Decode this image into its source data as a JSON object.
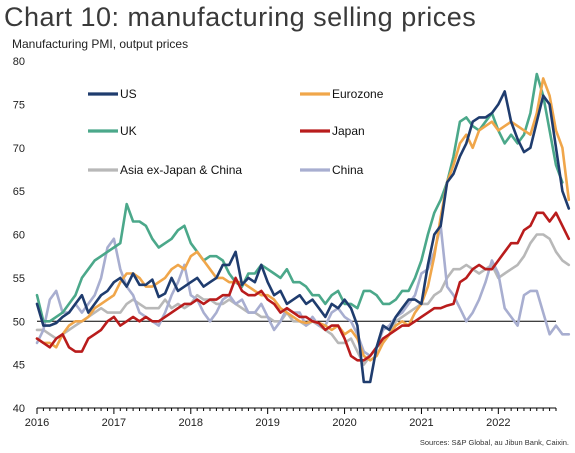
{
  "header": {
    "title": "Chart 10: manufacturing selling prices",
    "subtitle": "Manufacturing PMI, output prices",
    "source": "Sources: S&P Global, au Jibun Bank, Caixin."
  },
  "chart_data": {
    "type": "line",
    "ylim": [
      40,
      80
    ],
    "yticks": [
      40,
      45,
      50,
      55,
      60,
      65,
      70,
      75,
      80
    ],
    "xlim": [
      2016,
      2022.75
    ],
    "xticks": [
      "2016",
      "2017",
      "2018",
      "2019",
      "2020",
      "2021",
      "2022"
    ],
    "reference_line": 50,
    "grid": false,
    "legend": "inside top-left, two columns",
    "series": [
      {
        "name": "US",
        "color": "#1f3c6e",
        "x0": 2016.0,
        "values": [
          52,
          49.5,
          49.5,
          49.8,
          50.5,
          51,
          52,
          53,
          51,
          52,
          53,
          53.5,
          54.5,
          55,
          54,
          55.5,
          54.2,
          54.2,
          54.8,
          52.8,
          53.2,
          55,
          53.5,
          54,
          54.5,
          55,
          54,
          54.5,
          55,
          56.5,
          56.5,
          58,
          54.2,
          55,
          54.5,
          56.5,
          54.5,
          53,
          53.5,
          52,
          52.5,
          53,
          52,
          52.5,
          51.5,
          50.5,
          52,
          51.5,
          52.5,
          51.5,
          49.5,
          43,
          43,
          47,
          49.5,
          49,
          50.5,
          51.5,
          52.5,
          52.5,
          52,
          56.5,
          60,
          61,
          66,
          67,
          69,
          70.5,
          73,
          73.5,
          73.5,
          74,
          75,
          76.5,
          73,
          71,
          69.5,
          70,
          73,
          76,
          75,
          70,
          65,
          63
        ]
      },
      {
        "name": "Eurozone",
        "color": "#f0a64a",
        "x0": 2016.0,
        "values": [
          48,
          47.5,
          47.5,
          47,
          48.5,
          49.5,
          50,
          50,
          50.5,
          51.5,
          52,
          52.5,
          53,
          54.5,
          55.5,
          55.5,
          55,
          54,
          54,
          54.5,
          55,
          56,
          56.5,
          56,
          57.5,
          58,
          57,
          56,
          55,
          55,
          54.5,
          54.5,
          54.5,
          54,
          53.5,
          53,
          53,
          52.5,
          51.5,
          51,
          50.5,
          50,
          49.8,
          50,
          49.8,
          49.5,
          49,
          49.5,
          48.5,
          49,
          48,
          46,
          45.5,
          46,
          47.5,
          48.5,
          49.5,
          50,
          49.5,
          51,
          52,
          54,
          57.5,
          62,
          66,
          68,
          70.5,
          71.5,
          70,
          72,
          72.5,
          73,
          72,
          72.5,
          73,
          72.5,
          72,
          71.5,
          74,
          78,
          76,
          72,
          70,
          64
        ]
      },
      {
        "name": "UK",
        "color": "#4ba88a",
        "x0": 2016.0,
        "values": [
          53,
          50,
          50,
          50.5,
          51,
          52,
          53,
          55,
          56,
          57,
          57.5,
          58,
          58.5,
          59,
          63.5,
          61.5,
          61.5,
          61,
          59.5,
          58.5,
          59,
          59.5,
          60.5,
          61,
          59,
          58,
          57,
          57.5,
          57.5,
          57,
          55.5,
          54.5,
          54,
          55.5,
          55.5,
          56.5,
          56,
          55.5,
          55,
          56,
          54.5,
          54.5,
          54,
          53,
          53,
          52,
          53,
          53.5,
          52,
          52,
          51.5,
          53.5,
          53.5,
          53,
          52,
          52,
          52.5,
          53.5,
          53.5,
          55,
          57,
          60,
          62.5,
          64,
          66,
          69,
          73,
          73.5,
          72.5,
          72,
          73,
          74,
          72,
          70.5,
          71.5,
          70.5,
          71.5,
          74,
          78.5,
          76,
          72,
          68,
          66
        ]
      },
      {
        "name": "Japan",
        "color": "#b91c1c",
        "x0": 2016.0,
        "values": [
          48,
          47.5,
          47,
          48,
          48.5,
          47,
          46.5,
          46.5,
          48,
          48.5,
          49,
          50,
          50.5,
          49.5,
          50,
          50.5,
          50,
          50.5,
          50,
          50,
          50.5,
          51,
          51.5,
          52,
          52,
          52.5,
          52,
          52.5,
          52.5,
          53,
          53,
          55,
          53.5,
          53,
          53,
          53.5,
          52.5,
          52,
          51,
          51.5,
          51,
          50.5,
          50.5,
          50,
          49.8,
          49,
          49.5,
          49.5,
          48,
          46,
          45.5,
          45.5,
          46,
          47,
          48,
          48.5,
          49,
          49.5,
          49.5,
          50,
          50.5,
          51,
          51.5,
          51.5,
          51.8,
          52,
          54.5,
          55,
          56,
          56.5,
          56,
          56,
          57,
          58,
          59,
          59,
          60.5,
          61,
          62.5,
          62.5,
          61.5,
          62.5,
          61,
          59.5
        ]
      },
      {
        "name": "Asia ex-Japan & China",
        "color": "#b8b8b8",
        "x0": 2016.0,
        "values": [
          49,
          49,
          48.5,
          48,
          48.5,
          49,
          49.5,
          50,
          50.5,
          51,
          51.5,
          51,
          51,
          51,
          52,
          52.5,
          52,
          51.5,
          51.5,
          51.5,
          52.5,
          51.5,
          52,
          51.5,
          52,
          53,
          52.5,
          52.5,
          52,
          52,
          52.5,
          52,
          51.5,
          51,
          51,
          50.5,
          50.5,
          50,
          50,
          51,
          50,
          50,
          49.5,
          50,
          49.5,
          49,
          48.5,
          47.5,
          47.5,
          48,
          46.5,
          45,
          46,
          47,
          47.5,
          48.5,
          50,
          50.5,
          51,
          51.5,
          52,
          52,
          53,
          53.5,
          55,
          56,
          56,
          56.5,
          56,
          55.5,
          56,
          56.5,
          55,
          55.5,
          56,
          56.5,
          57.5,
          59,
          60,
          60,
          59.5,
          58,
          57,
          56.5
        ]
      },
      {
        "name": "China",
        "color": "#a8aed0",
        "x0": 2016.0,
        "values": [
          47.5,
          49,
          52.5,
          53.5,
          51,
          51,
          52,
          51,
          52,
          53,
          55,
          58.5,
          59.5,
          56,
          54,
          53,
          51,
          50.5,
          50,
          49.5,
          51,
          53,
          54.5,
          56.5,
          53,
          52.5,
          51,
          50,
          51,
          52.5,
          53,
          52,
          52.5,
          51,
          51,
          52,
          50.5,
          49,
          50,
          51.5,
          51,
          51,
          49.5,
          50.5,
          49.5,
          49.5,
          51,
          51.5,
          50.5,
          50,
          48.5,
          46.5,
          46,
          47,
          49,
          49.5,
          50.5,
          51,
          52,
          53,
          55.5,
          56,
          58,
          61,
          54,
          53,
          51.5,
          50,
          51,
          52.5,
          54.5,
          57,
          55.5,
          51.5,
          50.5,
          49.5,
          53,
          53.5,
          53.5,
          51,
          48.5,
          49.5,
          48.5,
          48.5
        ]
      }
    ]
  }
}
